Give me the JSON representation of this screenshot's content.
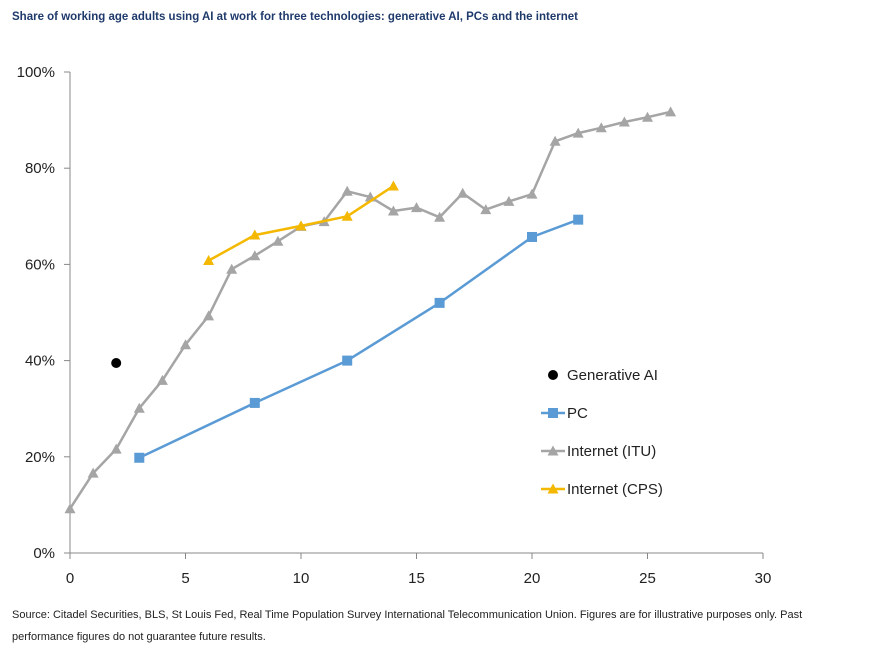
{
  "chart_data": {
    "type": "line",
    "title": "Share of working age adults using AI at work for three technologies: generative AI, PCs and the internet",
    "xlabel": "",
    "ylabel": "",
    "xlim": [
      0,
      30
    ],
    "ylim": [
      0,
      100
    ],
    "x_ticks": [
      0,
      5,
      10,
      15,
      20,
      25,
      30
    ],
    "y_ticks": [
      0,
      20,
      40,
      60,
      80,
      100
    ],
    "y_tick_labels": [
      "0%",
      "20%",
      "40%",
      "60%",
      "80%",
      "100%"
    ],
    "grid": false,
    "legend_position": "lower-right",
    "series": [
      {
        "name": "Generative AI",
        "marker": "circle",
        "color": "#000000",
        "line": false,
        "points": [
          [
            2,
            39.5
          ]
        ]
      },
      {
        "name": "PC",
        "marker": "square",
        "color": "#5b9bd5",
        "line": true,
        "points": [
          [
            3,
            19.8
          ],
          [
            8,
            31.2
          ],
          [
            12,
            40
          ],
          [
            16,
            52
          ],
          [
            20,
            65.7
          ],
          [
            22,
            69.3
          ]
        ]
      },
      {
        "name": "Internet (ITU)",
        "marker": "triangle",
        "color": "#a5a5a5",
        "line": true,
        "points": [
          [
            0,
            9.2
          ],
          [
            1,
            16.6
          ],
          [
            2,
            21.6
          ],
          [
            3,
            30.1
          ],
          [
            4,
            35.9
          ],
          [
            5,
            43.3
          ],
          [
            6,
            49.3
          ],
          [
            7,
            59
          ],
          [
            8,
            61.8
          ],
          [
            9,
            64.8
          ],
          [
            10,
            67.9
          ],
          [
            11,
            68.9
          ],
          [
            12,
            75.2
          ],
          [
            13,
            74
          ],
          [
            14,
            71.1
          ],
          [
            15,
            71.8
          ],
          [
            16,
            69.8
          ],
          [
            17,
            74.8
          ],
          [
            18,
            71.4
          ],
          [
            19,
            73.1
          ],
          [
            20,
            74.6
          ],
          [
            21,
            85.6
          ],
          [
            22,
            87.3
          ],
          [
            23,
            88.4
          ],
          [
            24,
            89.6
          ],
          [
            25,
            90.6
          ],
          [
            26,
            91.7
          ]
        ]
      },
      {
        "name": "Internet (CPS)",
        "marker": "triangle",
        "color": "#f4b800",
        "line": true,
        "points": [
          [
            6,
            60.8
          ],
          [
            8,
            66.1
          ],
          [
            10,
            68
          ],
          [
            12,
            70
          ],
          [
            14,
            76.3
          ]
        ]
      }
    ],
    "source_note": "Source: Citadel Securities, BLS, St Louis Fed, Real Time Population Survey International Telecommunication Union. Figures are for illustrative purposes only. Past performance figures do not guarantee future results."
  }
}
